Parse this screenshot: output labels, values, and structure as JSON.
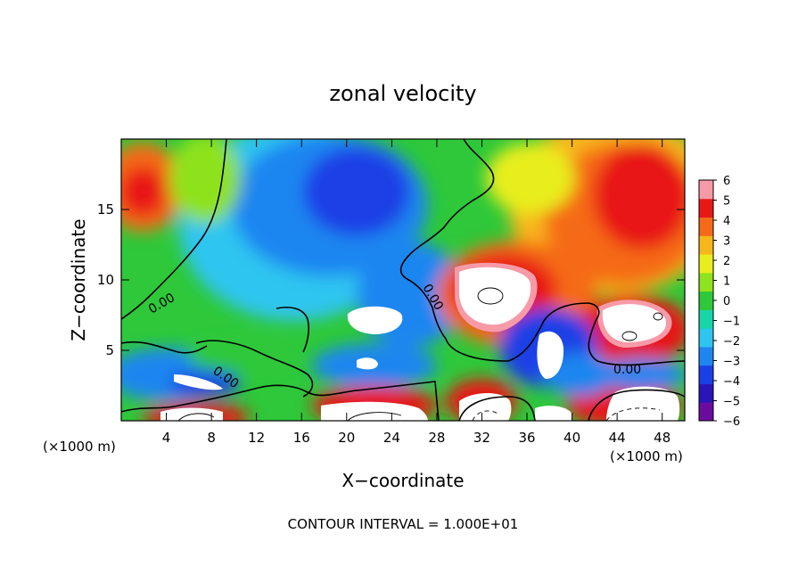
{
  "chart_data": {
    "type": "heatmap",
    "title": "zonal velocity",
    "xlabel": "X−coordinate",
    "ylabel": "Z−coordinate",
    "x_unit": "(×1000 m)",
    "x_unit_right": "(×1000 m)",
    "xlim": [
      0,
      50
    ],
    "ylim": [
      0,
      20
    ],
    "x_ticks": [
      4,
      8,
      12,
      16,
      20,
      24,
      28,
      32,
      36,
      40,
      44,
      48
    ],
    "y_ticks": [
      5,
      10,
      15
    ],
    "colorbar": {
      "ticks": [
        "6",
        "5",
        "4",
        "3",
        "2",
        "1",
        "0",
        "−1",
        "−2",
        "−3",
        "−4",
        "−5",
        "−6"
      ],
      "range": [
        -6,
        6
      ],
      "colors": [
        "#6a0d9e",
        "#2a16b8",
        "#1b3fe6",
        "#1e86f0",
        "#2ec5f0",
        "#18d6a8",
        "#2ec83a",
        "#8ee21e",
        "#e8ee1e",
        "#f7b61a",
        "#f56a18",
        "#e81818",
        "#f79aa8"
      ]
    },
    "contour_labels": [
      "0.00",
      "0.00",
      "0.00",
      "0.00"
    ],
    "footer": "CONTOUR INTERVAL = 1.000E+01"
  }
}
